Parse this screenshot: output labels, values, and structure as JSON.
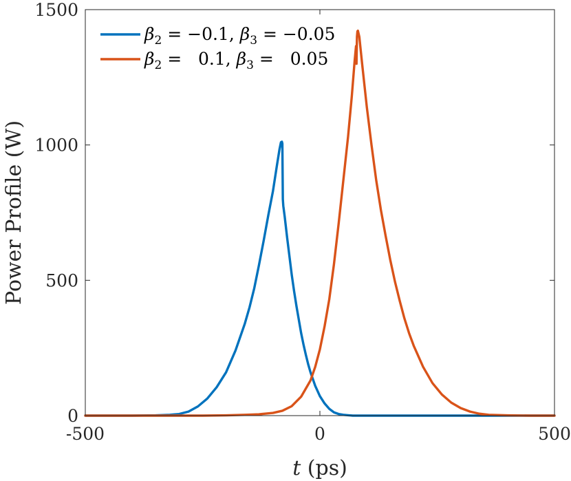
{
  "chart_data": {
    "type": "line",
    "xlabel": {
      "var": "t",
      "rest": " (ps)"
    },
    "ylabel": "Power Profile (W)",
    "xlim": [
      -500,
      500
    ],
    "ylim": [
      0,
      1500
    ],
    "xticks": [
      -500,
      0,
      500
    ],
    "yticks": [
      0,
      500,
      1000,
      1500
    ],
    "xtick_labels": [
      "-500",
      "0",
      "500"
    ],
    "ytick_labels": [
      "0",
      "500",
      "1000",
      "1500"
    ],
    "grid": false,
    "legend_position": "top-left",
    "series": [
      {
        "name": "β₂ = −0.1, β₃ = −0.05",
        "legend_parts": {
          "b2_value": " = −0.1, ",
          "b3_value": " = −0.05"
        },
        "color": "#0072BD",
        "points": [
          [
            -500,
            0
          ],
          [
            -400,
            0
          ],
          [
            -350,
            1
          ],
          [
            -320,
            3
          ],
          [
            -300,
            6
          ],
          [
            -280,
            15
          ],
          [
            -260,
            34
          ],
          [
            -240,
            63
          ],
          [
            -220,
            105
          ],
          [
            -200,
            160
          ],
          [
            -180,
            240
          ],
          [
            -160,
            340
          ],
          [
            -150,
            400
          ],
          [
            -140,
            470
          ],
          [
            -130,
            555
          ],
          [
            -120,
            645
          ],
          [
            -110,
            740
          ],
          [
            -100,
            830
          ],
          [
            -92,
            920
          ],
          [
            -86,
            985
          ],
          [
            -83,
            1010
          ],
          [
            -81,
            1012
          ],
          [
            -80,
            1005
          ],
          [
            -79,
            800
          ],
          [
            -78,
            775
          ],
          [
            -75,
            735
          ],
          [
            -70,
            660
          ],
          [
            -65,
            590
          ],
          [
            -60,
            520
          ],
          [
            -55,
            460
          ],
          [
            -50,
            405
          ],
          [
            -45,
            355
          ],
          [
            -40,
            305
          ],
          [
            -35,
            263
          ],
          [
            -30,
            225
          ],
          [
            -25,
            190
          ],
          [
            -20,
            160
          ],
          [
            -10,
            110
          ],
          [
            0,
            72
          ],
          [
            10,
            45
          ],
          [
            20,
            25
          ],
          [
            30,
            12
          ],
          [
            40,
            6
          ],
          [
            50,
            3
          ],
          [
            70,
            0
          ],
          [
            500,
            0
          ]
        ]
      },
      {
        "name": "β₂ = 0.1, β₃ = 0.05",
        "legend_parts": {
          "b2_value": " =   0.1, ",
          "b3_value": " =   0.05"
        },
        "color": "#D95319",
        "points": [
          [
            -500,
            0
          ],
          [
            -250,
            0
          ],
          [
            -200,
            1
          ],
          [
            -160,
            3
          ],
          [
            -130,
            5
          ],
          [
            -100,
            10
          ],
          [
            -80,
            18
          ],
          [
            -60,
            35
          ],
          [
            -40,
            70
          ],
          [
            -20,
            130
          ],
          [
            -10,
            180
          ],
          [
            0,
            245
          ],
          [
            10,
            330
          ],
          [
            20,
            430
          ],
          [
            30,
            560
          ],
          [
            40,
            710
          ],
          [
            50,
            870
          ],
          [
            60,
            1030
          ],
          [
            68,
            1180
          ],
          [
            74,
            1310
          ],
          [
            77,
            1365
          ],
          [
            78,
            1300
          ],
          [
            79,
            1400
          ],
          [
            80,
            1420
          ],
          [
            81,
            1422
          ],
          [
            84,
            1400
          ],
          [
            90,
            1300
          ],
          [
            100,
            1140
          ],
          [
            110,
            1000
          ],
          [
            120,
            870
          ],
          [
            130,
            760
          ],
          [
            140,
            665
          ],
          [
            150,
            575
          ],
          [
            160,
            495
          ],
          [
            170,
            425
          ],
          [
            180,
            360
          ],
          [
            190,
            305
          ],
          [
            200,
            258
          ],
          [
            220,
            180
          ],
          [
            240,
            120
          ],
          [
            260,
            78
          ],
          [
            280,
            48
          ],
          [
            300,
            28
          ],
          [
            320,
            15
          ],
          [
            340,
            7
          ],
          [
            360,
            3
          ],
          [
            400,
            1
          ],
          [
            450,
            0
          ],
          [
            500,
            0
          ]
        ]
      }
    ]
  }
}
